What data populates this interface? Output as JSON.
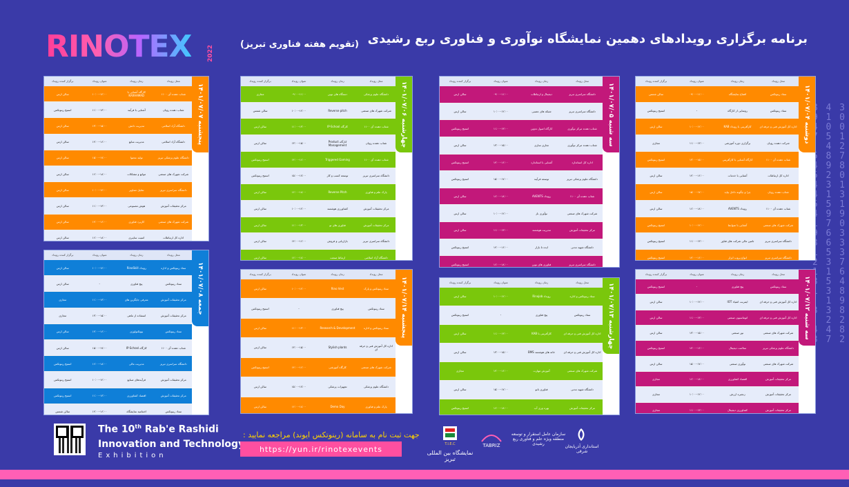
{
  "header": {
    "logo": "RINOTEX",
    "logo_year": "2022",
    "title": "برنامه برگزاری رویدادهای دهمین نمایشگاه نوآوری و فناوری ربع رشیدی",
    "subtitle": "(تقویم هفته فناوری تبریز)"
  },
  "columns": [
    "برگزار کننده رویداد",
    "عنوان رویداد",
    "زمان رویداد",
    "محل رویداد"
  ],
  "days": [
    {
      "name": "دوشنبه ۱۴۰۱/۰۷/۰۴",
      "color": "#ff8a00",
      "rows": [
        [
          "ستاد رینوتکس",
          "افتتاح نمایشگاه",
          "۰۹:۰۰-۱۱:۰۰",
          "سالن شمس"
        ],
        [
          "ستاد رینوتکس",
          "رونمایی از کارگاه",
          "-",
          "استیج رینوتکس"
        ],
        [
          "اداره کل آموزش فنی و حرفه ای",
          "کارآفرینی با رویداد KAB",
          "۱۰:۰۰-۱۲:۰۰",
          "سالن ارس"
        ],
        [
          "شرکت دهنده رویان",
          "برگزاری دوره آموزشی",
          "۱۱:۰۰-۱۳:۰۰",
          "مجازی"
        ],
        [
          "شتاب دهنده آی ۱۱۰۰",
          "کارگاه آشنایی با کارآفرینی",
          "۱۳:۰۰-۱۵:۰۰",
          "استیج رینوتکس"
        ],
        [
          "اداره کل ارتباطات",
          "آشنایی با خدمات",
          "۱۴:۰۰-۱۶:۰۰",
          "سالن ارس"
        ],
        [
          "شتاب دهنده رویان",
          "چرا و چگونه داخل بیاید",
          "۱۵:۰۰-۱۷:۰۰",
          "سالن ارس"
        ],
        [
          "شتاب دهنده آی ۱۱۰۰",
          "رویداد AVENTS",
          "۱۶:۰۰-۱۸:۰۰",
          "سالن ارس"
        ],
        [
          "شرکت شهرک های صنعتی",
          "آشنایی با ضوابط",
          "۱۰:۰۰-۱۲:۰۰",
          "استیج رینوتکس"
        ],
        [
          "دانشگاه سراسری تبریز",
          "تامین مالی شرکت های فناور",
          "۱۱:۰۰-۱۳:۰۰",
          "استیج رینوتکس"
        ],
        [
          "دانشگاه سراسری تبریز",
          "انواع پروب ابزار",
          "۱۴:۰۰-۱۶:۰۰",
          "استیج رینوتکس"
        ]
      ]
    },
    {
      "name": "سه شنبه ۱۴۰۱/۰۷/۰۵",
      "color": "#c2187a",
      "rows": [
        [
          "دانشگاه سراسری تبریز",
          "دیجیتال و ارتباطات",
          "۰۹:۰۰-۱۱:۰۰",
          "سالن ارس"
        ],
        [
          "دانشگاه سراسری تبریز",
          "شبکه های عصبی",
          "۱۰:۰۰-۱۲:۰۰",
          "سالن ارس"
        ],
        [
          "شتاب دهنده مرکز نوآوری",
          "کارگاه اصول تدوین",
          "۱۱:۰۰-۱۳:۰۰",
          "استیج رینوتکس"
        ],
        [
          "شتاب دهنده مرکز نوآوری",
          "تجاری سازی",
          "۱۳:۰۰-۱۵:۰۰",
          "سالن ارس"
        ],
        [
          "اداره کل استاندارد",
          "آشنایی با استاندارد",
          "۱۴:۰۰-۱۶:۰۰",
          "استیج رینوتکس"
        ],
        [
          "دانشگاه علوم پزشکی تبریز",
          "توسعه فرآیند",
          "۱۵:۰۰-۱۷:۰۰",
          "استیج رینوتکس"
        ],
        [
          "شتاب دهنده آی ۱۱۰۰",
          "رویداد AVENTS",
          "۱۶:۰۰-۱۸:۰۰",
          "سالن ارس"
        ],
        [
          "شرکت شهرک های صنعتی",
          "نوآوری باز",
          "۱۰:۰۰-۱۲:۰۰",
          "سالن ارس"
        ],
        [
          "مرکز تحقیقات آموزش",
          "مدیریت هوشمند",
          "۱۱:۰۰-۱۳:۰۰",
          "سالن ارس"
        ],
        [
          "دانشگاه شهید مدنی",
          "ایده تا بازار",
          "۱۴:۰۰-۱۶:۰۰",
          "استیج رینوتکس"
        ],
        [
          "دانشگاه سراسری تبریز",
          "فناوری های نوین",
          "۱۶:۰۰-۱۸:۰۰",
          "استیج رینوتکس"
        ]
      ]
    },
    {
      "name": "چهارشنبه ۱۴۰۱/۰۷/۰۶",
      "color": "#7ac70c",
      "rows": [
        [
          "دانشگاه علوم پزشکی",
          "دستگاه های نوین",
          "۰۹:۰۰-۱۱:۰۰",
          "مجازی"
        ],
        [
          "شرکت شهرک های صنعتی",
          "Reverse pitch",
          "۱۰:۰۰-۱۲:۰۰",
          "سالن شمس"
        ],
        [
          "شتاب دهنده آی ۱۱۰۰",
          "کارگاه IP-School",
          "۱۱:۰۰-۱۳:۰۰",
          "سالن ارس"
        ],
        [
          "شتاب دهنده رویان",
          "کارگاه Product Management",
          "۱۳:۰۰-۱۵:۰۰",
          "سالن ارس"
        ],
        [
          "شتاب دهنده آی ۱۱۰۰",
          "Triggered Gaming",
          "۱۴:۰۰-۱۶:۰۰",
          "استیج رینوتکس"
        ],
        [
          "دانشگاه سراسری تبریز",
          "توسعه کسب و کار",
          "۱۵:۰۰-۱۷:۰۰",
          "استیج رینوتکس"
        ],
        [
          "پارک علم و فناوری",
          "Reverse Pitch",
          "۱۶:۰۰-۱۸:۰۰",
          "سالن ارس"
        ],
        [
          "مرکز تحقیقات آموزش",
          "کشاورزی هوشمند",
          "۱۰:۰۰-۱۲:۰۰",
          "سالن ارس"
        ],
        [
          "مرکز تحقیقات آموزش",
          "فناوری های نو",
          "۱۱:۰۰-۱۳:۰۰",
          "سالن ارس"
        ],
        [
          "دانشگاه سراسری تبریز",
          "بازاریابی و فروش",
          "۱۴:۰۰-۱۶:۰۰",
          "سالن ارس"
        ],
        [
          "دانشگاه آزاد اسلامی",
          "ارتباط صنعت",
          "۱۶:۰۰-۱۸:۰۰",
          "سالن ارس"
        ]
      ]
    },
    {
      "name": "پنجشنبه ۱۴۰۱/۰۷/۰۷",
      "color": "#ff8a00",
      "rows": [
        [
          "شتاب دهنده آی ۱۱۰۰",
          "کارگاه آشنایی با KARAAMAD",
          "۱۰:۰۰-۱۲:۰۰",
          "سالن ارس"
        ],
        [
          "شتاب دهنده رویان",
          "آشنایی با فرآیند",
          "۱۱:۰۰-۱۳:۰۰",
          "استیج رینوتکس"
        ],
        [
          "دانشگاه آزاد اسلامی",
          "مدیریت دانش",
          "۱۳:۰۰-۱۵:۰۰",
          "سالن ارس"
        ],
        [
          "دانشگاه آزاد اسلامی",
          "مدیریت منابع",
          "۱۴:۰۰-۱۶:۰۰",
          "سالن ارس"
        ],
        [
          "دانشگاه علوم پزشکی تبریز",
          "تولید محتوا",
          "۱۵:۰۰-۱۷:۰۰",
          "سالن ارس"
        ],
        [
          "شرکت شهرک های صنعتی",
          "موانع و مشکلات",
          "۱۶:۰۰-۱۸:۰۰",
          "سالن ارس"
        ],
        [
          "دانشگاه سراسری تبریز",
          "تحلیل تصاویر",
          "۱۰:۰۰-۱۲:۰۰",
          "سالن ارس"
        ],
        [
          "مرکز تحقیقات آموزش",
          "هوش مصنوعی",
          "۱۱:۰۰-۱۳:۰۰",
          "سالن ارس"
        ],
        [
          "شرکت شهرک های صنعتی",
          "کاربرد فناوری",
          "۱۴:۰۰-۱۶:۰۰",
          "سالن ارس"
        ],
        [
          "اداره کل ارتباطات",
          "امنیت سایبری",
          "۱۶:۰۰-۱۸:۰۰",
          "سالن ارس"
        ]
      ]
    },
    {
      "name": "سه شنبه ۱۴۰۱/۰۷/۱۲",
      "color": "#c2187a",
      "rows": [
        [
          "ستاد رینوتکس",
          "پیچ فناوری",
          "-",
          "استیج رینوتکس"
        ],
        [
          "اداره کل آموزش فنی و حرفه ای",
          "اینترنت اشیاء IOT",
          "۱۰:۰۰-۱۲:۰۰",
          "سالن ارس"
        ],
        [
          "اداره کل آموزش فنی و حرفه ای",
          "اتوماسیون صنعتی",
          "۱۱:۰۰-۱۳:۰۰",
          "سالن ارس"
        ],
        [
          "شرکت شهرک های صنعتی",
          "نور صنعتی",
          "۱۳:۰۰-۱۵:۰۰",
          "سالن ارس"
        ],
        [
          "دانشگاه علوم پزشکی تبریز",
          "سلامت دیجیتال",
          "۱۴:۰۰-۱۶:۰۰",
          "استیج رینوتکس"
        ],
        [
          "شرکت شهرک های صنعتی",
          "نوآوری صنعتی",
          "۱۵:۰۰-۱۷:۰۰",
          "سالن ارس"
        ],
        [
          "مرکز تحقیقات آموزش",
          "اقتصاد کشاورزی",
          "۱۶:۰۰-۱۸:۰۰",
          "مجازی"
        ],
        [
          "مرکز تحقیقات آموزش",
          "زنجیره ارزش",
          "۱۰:۰۰-۱۲:۰۰",
          "مجازی"
        ],
        [
          "مرکز تحقیقات آموزش",
          "کشاورزی دیجیتال",
          "۱۱:۰۰-۱۳:۰۰",
          "مجازی"
        ]
      ]
    },
    {
      "name": "چهارشنبه ۱۴۰۱/۰۷/۱۳",
      "color": "#7ac70c",
      "rows": [
        [
          "ستاد رینوتکس و اداره",
          "رویداد Rinojob",
          "۱۰:۰۰-۱۲:۰۰",
          "سالن ارس"
        ],
        [
          "ستاد رینوتکس",
          "پیچ فناوری",
          "-",
          "استیج رینوتکس"
        ],
        [
          "اداره کل آموزش فنی و حرفه ای",
          "کارآفرینی با KAB",
          "۱۱:۰۰-۱۳:۰۰",
          "سالن ارس"
        ],
        [
          "اداره کل آموزش فنی و حرفه ای",
          "خانه های هوشمند BMS",
          "۱۳:۰۰-۱۵:۰۰",
          "سالن ارس"
        ],
        [
          "شرکت شهرک های صنعتی",
          "آموزش مهارت",
          "۱۴:۰۰-۱۶:۰۰",
          "مجازی"
        ],
        [
          "دانشگاه شهید مدنی",
          "فناوری نانو",
          "۱۵:۰۰-۱۷:۰۰",
          "سالن ارس"
        ],
        [
          "مرکز تحقیقات آموزش",
          "بهره وری آب",
          "۱۶:۰۰-۱۸:۰۰",
          "استیج رینوتکس"
        ]
      ]
    },
    {
      "name": "پنجشنبه ۱۴۰۱/۰۷/۱۴",
      "color": "#ff8a00",
      "rows": [
        [
          "ستاد رینوتکس و پارک",
          "Rino Vest",
          "۱۰:۰۰-۱۲:۰۰",
          "سالن ارس"
        ],
        [
          "ستاد رینوتکس",
          "پیچ فناوری",
          "-",
          "استیج رینوتکس"
        ],
        [
          "ستاد رینوتکس و اداره",
          "Research & Development",
          "۱۱:۰۰-۱۳:۰۰",
          "سالن ارس"
        ],
        [
          "اداره کل آموزش فنی و حرفه ای",
          "Stylish plants",
          "۱۳:۰۰-۱۵:۰۰",
          "سالن ارس"
        ],
        [
          "شرکت شهرک های صنعتی",
          "کارگاه آموزشی",
          "۱۴:۰۰-۱۶:۰۰",
          "استیج رینوتکس"
        ],
        [
          "دانشگاه علوم پزشکی",
          "تجهیزات پزشکی",
          "۱۵:۰۰-۱۷:۰۰",
          "سالن ارس"
        ],
        [
          "پارک علم و فناوری",
          "Demo Day",
          "۱۶:۰۰-۱۸:۰۰",
          "سالن ارس"
        ]
      ]
    },
    {
      "name": "جمعه ۱۴۰۱/۰۷/۰۸",
      "color": "#0f7fd8",
      "rows": [
        [
          "ستاد رینوتکس و اداره",
          "رویداد RinoSkill",
          "۱۰:۰۰-۱۲:۰۰",
          "سالن ارس"
        ],
        [
          "ستاد رینوتکس",
          "پیچ فناوری",
          "-",
          "سالن ارس"
        ],
        [
          "مرکز تحقیقات آموزش",
          "معرفی جایگزین های",
          "۱۱:۰۰-۱۳:۰۰",
          "مجازی"
        ],
        [
          "مرکز تحقیقات آموزش",
          "استفاده از ماهی",
          "۱۳:۰۰-۱۵:۰۰",
          "مجازی"
        ],
        [
          "ستاد رینوتکس",
          "بیوتکنولوژی",
          "۱۴:۰۰-۱۶:۰۰",
          "سالن ارس"
        ],
        [
          "شتاب دهنده آی ۱۱۰۰",
          "کارگاه IP-School",
          "۱۵:۰۰-۱۷:۰۰",
          "سالن ارس"
        ],
        [
          "دانشگاه سراسری تبریز",
          "مدیریت مالی",
          "۱۶:۰۰-۱۸:۰۰",
          "استیج رینوتکس"
        ],
        [
          "مرکز تحقیقات آموزش",
          "فرآیندهای صنایع",
          "۱۰:۰۰-۱۲:۰۰",
          "استیج رینوتکس"
        ],
        [
          "مرکز تحقیقات آموزش",
          "اقتصاد کشاورزی",
          "۱۱:۰۰-۱۳:۰۰",
          "استیج رینوتکس"
        ],
        [
          "ستاد رینوتکس",
          "اختتامیه نمایشگاه",
          "۱۴:۰۰-۱۶:۰۰",
          "سالن شمس"
        ]
      ]
    }
  ],
  "footer": {
    "title_pre": "The 10",
    "title_sup": "th",
    "title_post": " Rab'e Rashidi",
    "line2": "Innovation and Technology",
    "line3": "Exhibition",
    "register": "جهت ثبت نام به سامانه (رینوتکس ایوند) مراجعه نمایید :",
    "url": "https://yun.ir/rinotexevents",
    "partner1_abbr": "T.I.E.C",
    "partner1": "نمایشگاه بین المللی تبریز",
    "partner2_brand": "TABRIZ",
    "partner2": "سازمان عامل استقرار و توسعه منطقه ویژه علم و فناوری ربع رشیدی",
    "partner3": "استانداری آذربایجان شرقی"
  },
  "digits": "2 8 4 3\n  9 1 0\n 7 4 0 0\n2 4 7 5 1\n    4 2\n  5 8 7\n 2 4 9 8\n9 8 5 2 0\n 4 4 3 1\n7 6 4 1 3\n  1 5 5 1\n2 4 9 9\n   1 7 0\n  4 9 6 3\n   3 6 3\n 8 1 5 3\n   2 3 7\n  1 1 6\n1 3 5 4\n  1 3 8\n   1 9\n  3 3 8\n    2 2\n 8 4 4 8\n  3 7 2"
}
